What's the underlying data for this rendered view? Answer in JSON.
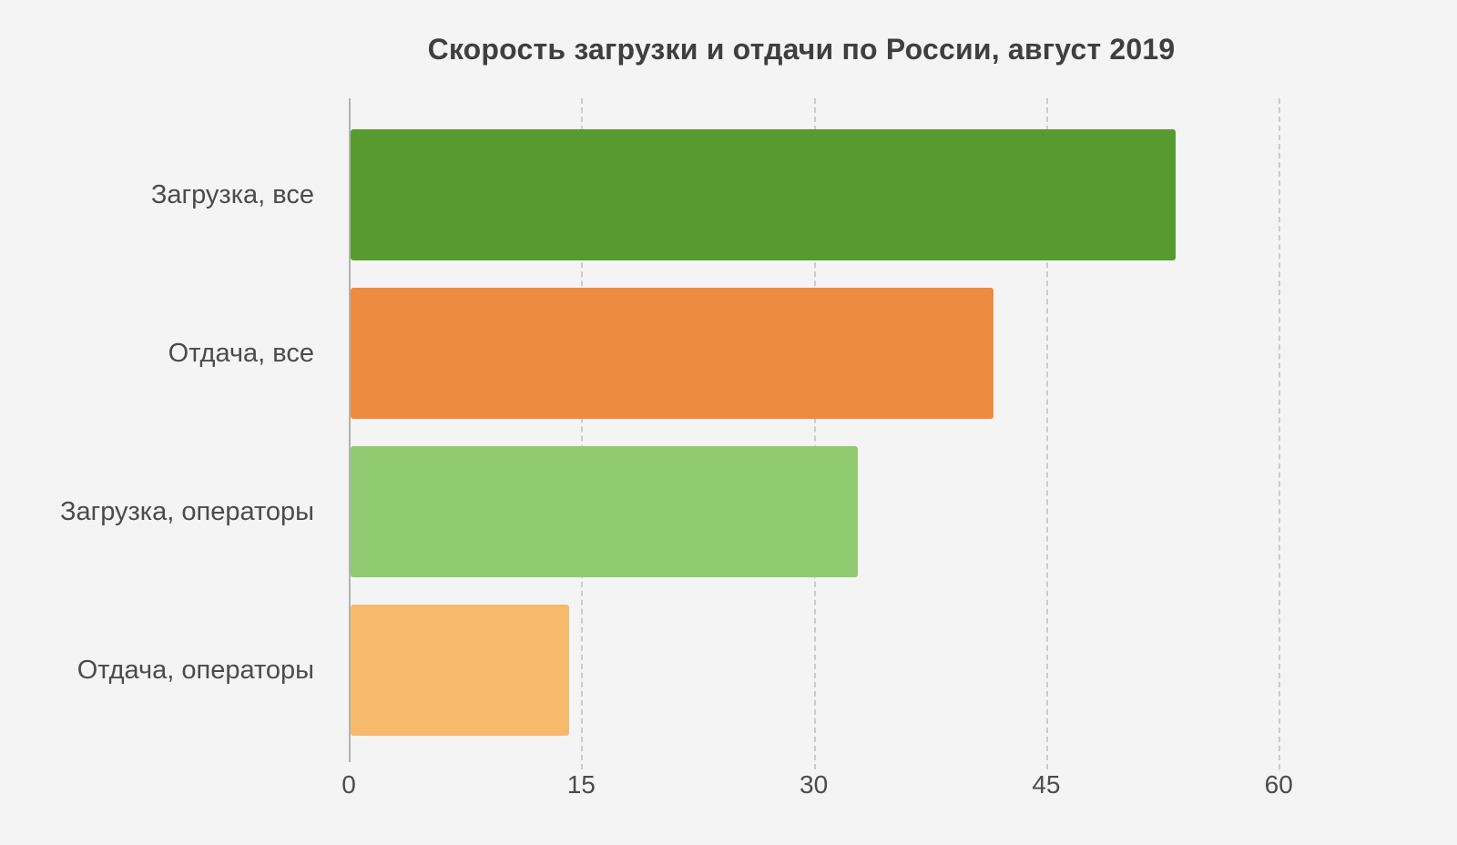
{
  "chart_data": {
    "type": "bar",
    "orientation": "horizontal",
    "title": "Скорость загрузки и отдачи по России, август 2019",
    "categories": [
      "Загрузка, все",
      "Отдача, все",
      "Загрузка, операторы",
      "Отдача, операторы"
    ],
    "values": [
      53.2,
      41.5,
      32.7,
      14.1
    ],
    "bar_colors": [
      "#579B30",
      "#EF8B40",
      "#90CA70",
      "#F7BA6D"
    ],
    "xlabel": "",
    "ylabel": "",
    "xlim": [
      0,
      66.8
    ],
    "xticks": [
      0,
      15,
      30,
      45,
      60
    ],
    "xtick_labels": [
      "0",
      "15",
      "30",
      "45",
      "60"
    ],
    "grid": "vertical-dashed",
    "legend_position": "none",
    "background_color": "#F4F4F4",
    "axis_color": "#B2B2B2",
    "gridline_color": "#CBCBCB",
    "title_color": "#3F3F3F",
    "label_color": "#4B4B4B"
  }
}
